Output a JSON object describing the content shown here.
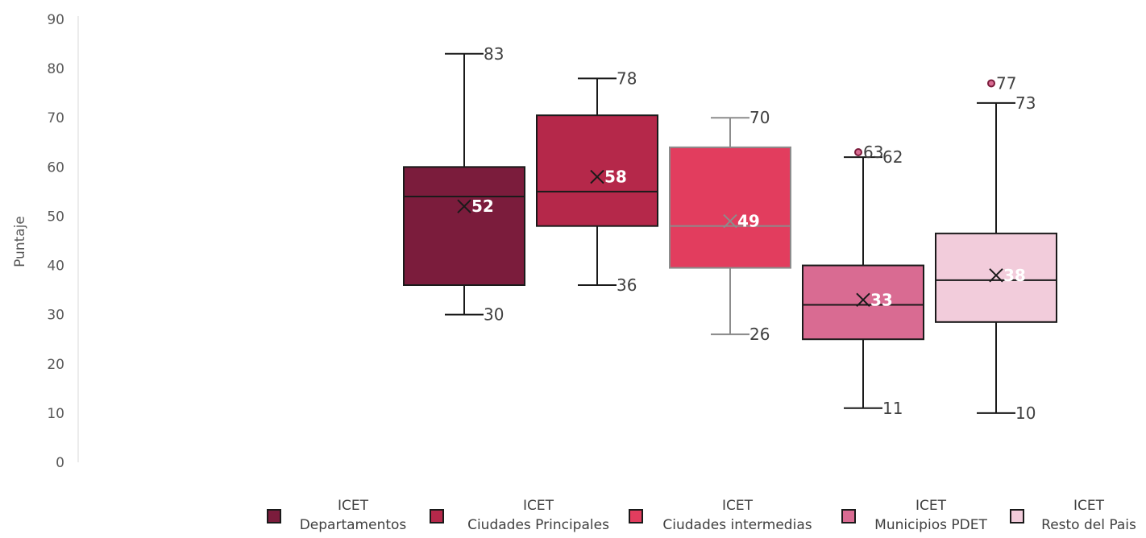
{
  "chart_data": {
    "type": "box",
    "ylabel": "Puntaje",
    "ylim": [
      0,
      90
    ],
    "yticks": [
      0,
      10,
      20,
      30,
      40,
      50,
      60,
      70,
      80,
      90
    ],
    "grid": false,
    "legend_position": "bottom",
    "series": [
      {
        "name_line1": "ICET",
        "name_line2": "Departamentos",
        "color": "#7B1C3C",
        "stroke": "#1a1a1a",
        "min": 30,
        "q1": 36,
        "median": 54,
        "q3": 60,
        "max": 83,
        "mean": 52,
        "min_label": "30",
        "max_label": "83",
        "mean_label": "52",
        "outliers": []
      },
      {
        "name_line1": "ICET",
        "name_line2": "Ciudades Principales",
        "color": "#B5284A",
        "stroke": "#1a1a1a",
        "min": 36,
        "q1": 48,
        "median": 55,
        "q3": 70.5,
        "max": 78,
        "mean": 58,
        "min_label": "36",
        "max_label": "78",
        "mean_label": "58",
        "outliers": []
      },
      {
        "name_line1": "ICET",
        "name_line2": "Ciudades intermedias",
        "color": "#E23D5E",
        "stroke": "#8c8c8c",
        "min": 26,
        "q1": 39.5,
        "median": 48,
        "q3": 64,
        "max": 70,
        "mean": 49,
        "min_label": "26",
        "max_label": "70",
        "mean_label": "49",
        "outliers": []
      },
      {
        "name_line1": "ICET",
        "name_line2": "Municipios PDET",
        "color": "#D96B92",
        "stroke": "#1a1a1a",
        "min": 11,
        "q1": 25,
        "median": 32,
        "q3": 40,
        "max": 62,
        "mean": 33,
        "min_label": "11",
        "max_label": "62",
        "mean_label": "33",
        "outliers": [
          {
            "value": 63,
            "label": "63"
          }
        ]
      },
      {
        "name_line1": "ICET",
        "name_line2": "Resto del Pais",
        "color": "#F2CCDB",
        "stroke": "#1a1a1a",
        "min": 10,
        "q1": 28.5,
        "median": 37,
        "q3": 46.5,
        "max": 73,
        "mean": 38,
        "min_label": "10",
        "max_label": "73",
        "mean_label": "38",
        "outliers": [
          {
            "value": 77,
            "label": "77"
          }
        ]
      }
    ]
  }
}
